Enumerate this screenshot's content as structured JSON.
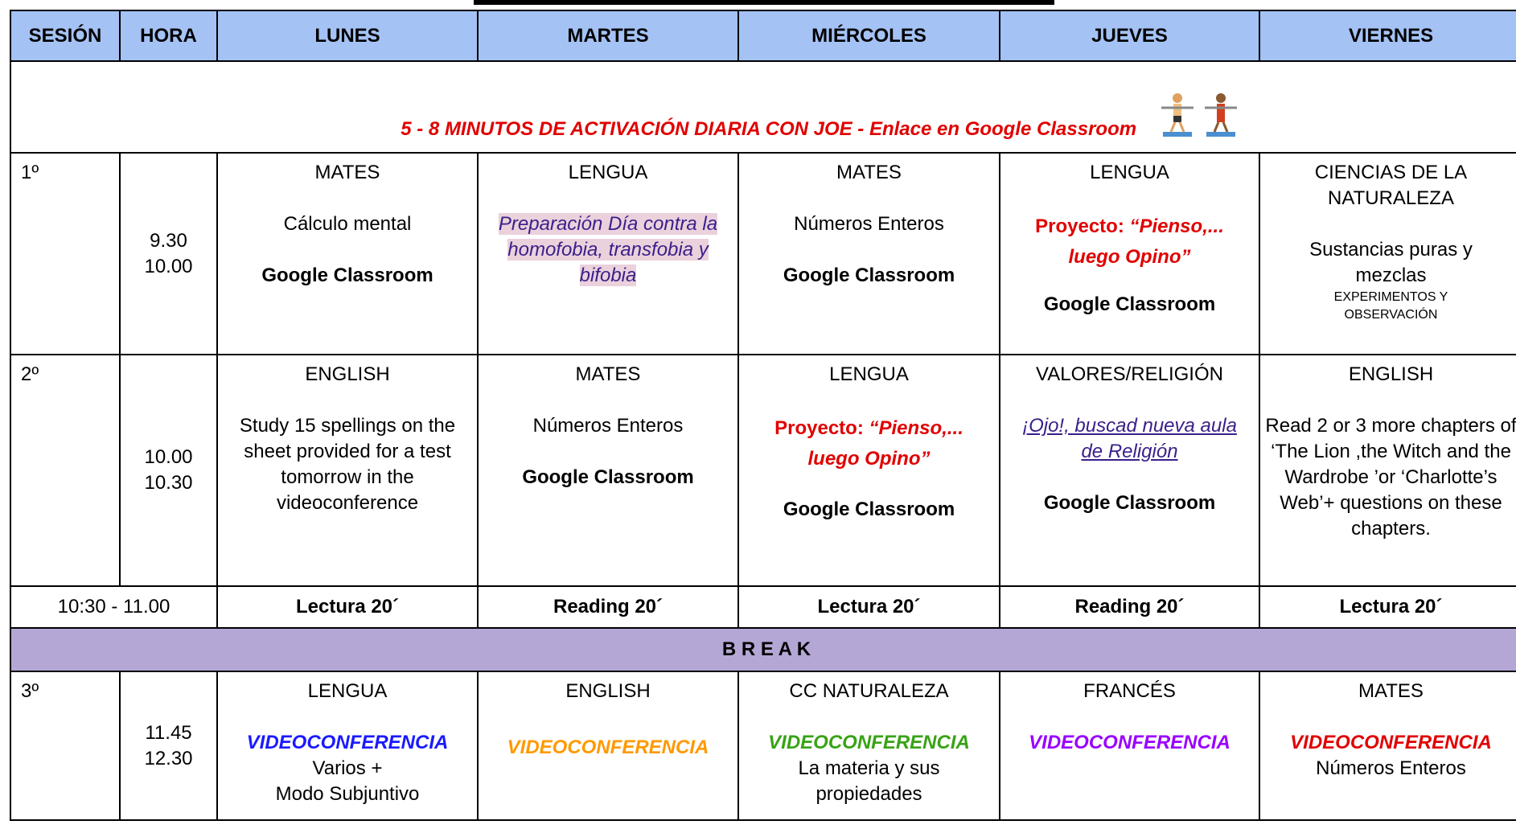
{
  "table": {
    "header": [
      "SESIÓN",
      "HORA",
      "LUNES",
      "MARTES",
      "MIÉRCOLES",
      "JUEVES",
      "VIERNES"
    ],
    "activation": "5 - 8 MINUTOS DE ACTIVACIÓN DIARIA CON JOE - Enlace en Google Classroom",
    "sessions": [
      {
        "session": "1º",
        "time": [
          "9.30",
          "10.00"
        ],
        "days": [
          [
            "MATES",
            "Cálculo mental",
            "Google Classroom"
          ],
          [
            "LENGUA",
            "Preparación Día contra la homofobia, transfobia y bifobia"
          ],
          [
            "MATES",
            "Números Enteros",
            "Google Classroom"
          ],
          [
            "LENGUA",
            "Proyecto:",
            "“Pienso,... luego Opino”",
            "Google Classroom"
          ],
          [
            "CIENCIAS DE LA NATURALEZA",
            "Sustancias puras y mezclas",
            "EXPERIMENTOS Y OBSERVACIÓN"
          ]
        ]
      },
      {
        "session": "2º",
        "time": [
          "10.00",
          "10.30"
        ],
        "days": [
          [
            "ENGLISH",
            "Study 15  spellings on the sheet provided  for a test tomorrow in the videoconference"
          ],
          [
            "MATES",
            "Números Enteros",
            "Google Classroom"
          ],
          [
            "LENGUA",
            "Proyecto:",
            "“Pienso,... luego Opino”",
            "Google Classroom"
          ],
          [
            "VALORES/RELIGIÓN",
            "¡Ojo!, buscad nueva aula de Religión",
            "Google Classroom"
          ],
          [
            "ENGLISH",
            "Read 2 or 3 more chapters of ‘The Lion ,the Witch and the Wardrobe ’or ‘Charlotte’s Web’+ questions on these chapters."
          ]
        ]
      }
    ],
    "reading": {
      "time": "10:30 - 11.00",
      "days": [
        "Lectura 20´",
        "Reading 20´",
        "Lectura 20´",
        "Reading 20´",
        "Lectura 20´"
      ]
    },
    "break": "B R E A K",
    "session3": {
      "session": "3º",
      "time": [
        "11.45",
        "12.30"
      ],
      "days": [
        [
          "LENGUA",
          "VIDEOCONFERENCIA",
          "Varios +",
          "Modo Subjuntivo"
        ],
        [
          "ENGLISH",
          "VIDEOCONFERENCIA"
        ],
        [
          "CC NATURALEZA",
          "VIDEOCONFERENCIA",
          "La materia y sus propiedades"
        ],
        [
          "FRANCÉS",
          "VIDEOCONFERENCIA"
        ],
        [
          "MATES",
          "VIDEOCONFERENCIA",
          "Números Enteros"
        ]
      ]
    }
  }
}
